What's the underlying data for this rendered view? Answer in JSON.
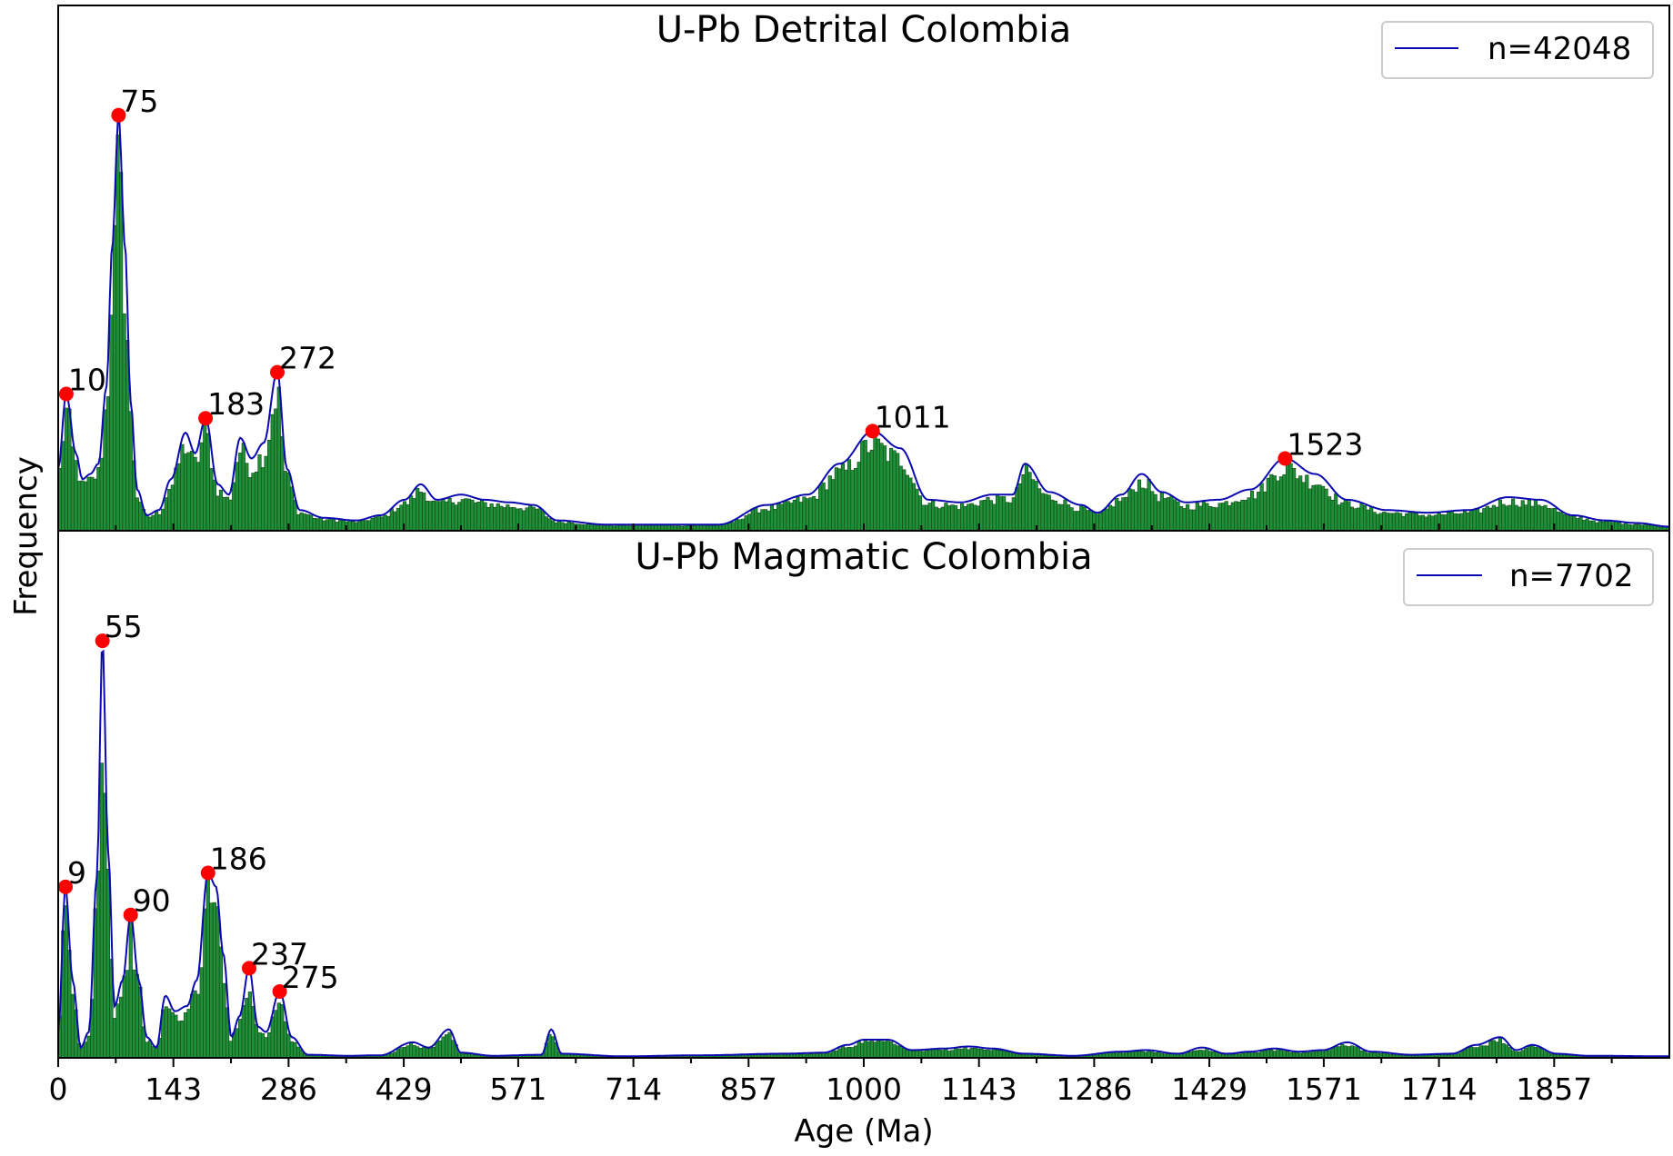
{
  "figure": {
    "ylabel": "Frequency",
    "xlabel": "Age (Ma)",
    "xlim": [
      0,
      2000
    ],
    "xticks": [
      0,
      143,
      286,
      429,
      571,
      714,
      857,
      1000,
      1143,
      1286,
      1429,
      1571,
      1714,
      1857
    ],
    "colors": {
      "bar_fill": "#1f8f3a",
      "bar_edge": "#114411",
      "kde_line": "#0a0ab0",
      "peak_marker": "#ff0000"
    }
  },
  "chart_data": [
    {
      "type": "bar",
      "title": "U-Pb Detrital Colombia",
      "legend": {
        "label": "n=42048",
        "placement": "top-right"
      },
      "ylim": [
        0,
        1.0
      ],
      "peaks": [
        {
          "age": 10,
          "label": "10",
          "y": 0.265
        },
        {
          "age": 75,
          "label": "75",
          "y": 0.805
        },
        {
          "age": 183,
          "label": "183",
          "y": 0.218
        },
        {
          "age": 272,
          "label": "272",
          "y": 0.307
        },
        {
          "age": 1011,
          "label": "1011",
          "y": 0.193
        },
        {
          "age": 1523,
          "label": "1523",
          "y": 0.14
        }
      ],
      "kde": [
        [
          0,
          0.12
        ],
        [
          10,
          0.265
        ],
        [
          22,
          0.15
        ],
        [
          30,
          0.1
        ],
        [
          40,
          0.11
        ],
        [
          50,
          0.13
        ],
        [
          60,
          0.28
        ],
        [
          67,
          0.55
        ],
        [
          75,
          0.805
        ],
        [
          83,
          0.55
        ],
        [
          90,
          0.25
        ],
        [
          98,
          0.08
        ],
        [
          110,
          0.03
        ],
        [
          125,
          0.04
        ],
        [
          140,
          0.1
        ],
        [
          158,
          0.19
        ],
        [
          170,
          0.15
        ],
        [
          183,
          0.218
        ],
        [
          198,
          0.09
        ],
        [
          212,
          0.07
        ],
        [
          226,
          0.18
        ],
        [
          240,
          0.14
        ],
        [
          255,
          0.17
        ],
        [
          272,
          0.307
        ],
        [
          284,
          0.12
        ],
        [
          300,
          0.04
        ],
        [
          330,
          0.025
        ],
        [
          370,
          0.02
        ],
        [
          400,
          0.03
        ],
        [
          430,
          0.06
        ],
        [
          450,
          0.09
        ],
        [
          470,
          0.06
        ],
        [
          500,
          0.07
        ],
        [
          530,
          0.06
        ],
        [
          560,
          0.055
        ],
        [
          590,
          0.05
        ],
        [
          620,
          0.02
        ],
        [
          680,
          0.012
        ],
        [
          760,
          0.012
        ],
        [
          820,
          0.012
        ],
        [
          880,
          0.05
        ],
        [
          930,
          0.07
        ],
        [
          970,
          0.13
        ],
        [
          1011,
          0.193
        ],
        [
          1045,
          0.16
        ],
        [
          1080,
          0.06
        ],
        [
          1120,
          0.055
        ],
        [
          1160,
          0.07
        ],
        [
          1185,
          0.07
        ],
        [
          1200,
          0.13
        ],
        [
          1230,
          0.075
        ],
        [
          1270,
          0.05
        ],
        [
          1290,
          0.035
        ],
        [
          1320,
          0.07
        ],
        [
          1345,
          0.11
        ],
        [
          1370,
          0.075
        ],
        [
          1400,
          0.055
        ],
        [
          1440,
          0.06
        ],
        [
          1480,
          0.08
        ],
        [
          1523,
          0.14
        ],
        [
          1560,
          0.11
        ],
        [
          1600,
          0.06
        ],
        [
          1650,
          0.04
        ],
        [
          1700,
          0.035
        ],
        [
          1750,
          0.04
        ],
        [
          1800,
          0.065
        ],
        [
          1840,
          0.06
        ],
        [
          1880,
          0.03
        ],
        [
          1920,
          0.02
        ],
        [
          1960,
          0.015
        ],
        [
          2000,
          0.008
        ]
      ]
    },
    {
      "type": "bar",
      "title": "U-Pb Magmatic Colombia",
      "legend": {
        "label": "n=7702",
        "placement": "top-right"
      },
      "ylim": [
        0,
        1.0
      ],
      "peaks": [
        {
          "age": 9,
          "label": "9",
          "y": 0.33
        },
        {
          "age": 55,
          "label": "55",
          "y": 0.805
        },
        {
          "age": 90,
          "label": "90",
          "y": 0.276
        },
        {
          "age": 186,
          "label": "186",
          "y": 0.357
        },
        {
          "age": 237,
          "label": "237",
          "y": 0.173
        },
        {
          "age": 275,
          "label": "275",
          "y": 0.128
        }
      ],
      "kde": [
        [
          0,
          0.05
        ],
        [
          9,
          0.33
        ],
        [
          18,
          0.15
        ],
        [
          28,
          0.02
        ],
        [
          38,
          0.05
        ],
        [
          48,
          0.35
        ],
        [
          55,
          0.805
        ],
        [
          62,
          0.4
        ],
        [
          70,
          0.1
        ],
        [
          80,
          0.15
        ],
        [
          90,
          0.276
        ],
        [
          100,
          0.15
        ],
        [
          110,
          0.04
        ],
        [
          122,
          0.02
        ],
        [
          133,
          0.12
        ],
        [
          145,
          0.09
        ],
        [
          160,
          0.1
        ],
        [
          172,
          0.15
        ],
        [
          186,
          0.357
        ],
        [
          196,
          0.33
        ],
        [
          205,
          0.2
        ],
        [
          215,
          0.04
        ],
        [
          225,
          0.08
        ],
        [
          237,
          0.173
        ],
        [
          248,
          0.06
        ],
        [
          258,
          0.05
        ],
        [
          275,
          0.128
        ],
        [
          290,
          0.04
        ],
        [
          310,
          0.006
        ],
        [
          360,
          0.004
        ],
        [
          400,
          0.005
        ],
        [
          440,
          0.03
        ],
        [
          460,
          0.02
        ],
        [
          485,
          0.055
        ],
        [
          500,
          0.01
        ],
        [
          540,
          0.004
        ],
        [
          600,
          0.006
        ],
        [
          612,
          0.055
        ],
        [
          625,
          0.008
        ],
        [
          700,
          0.003
        ],
        [
          800,
          0.005
        ],
        [
          900,
          0.008
        ],
        [
          950,
          0.01
        ],
        [
          980,
          0.025
        ],
        [
          1000,
          0.035
        ],
        [
          1030,
          0.035
        ],
        [
          1060,
          0.015
        ],
        [
          1100,
          0.018
        ],
        [
          1130,
          0.022
        ],
        [
          1160,
          0.018
        ],
        [
          1200,
          0.008
        ],
        [
          1260,
          0.004
        ],
        [
          1320,
          0.012
        ],
        [
          1350,
          0.015
        ],
        [
          1390,
          0.008
        ],
        [
          1420,
          0.02
        ],
        [
          1450,
          0.008
        ],
        [
          1480,
          0.012
        ],
        [
          1510,
          0.018
        ],
        [
          1540,
          0.012
        ],
        [
          1570,
          0.015
        ],
        [
          1600,
          0.03
        ],
        [
          1630,
          0.012
        ],
        [
          1680,
          0.006
        ],
        [
          1730,
          0.008
        ],
        [
          1760,
          0.025
        ],
        [
          1790,
          0.04
        ],
        [
          1810,
          0.015
        ],
        [
          1830,
          0.025
        ],
        [
          1860,
          0.008
        ],
        [
          1900,
          0.004
        ],
        [
          2000,
          0.003
        ]
      ]
    }
  ]
}
